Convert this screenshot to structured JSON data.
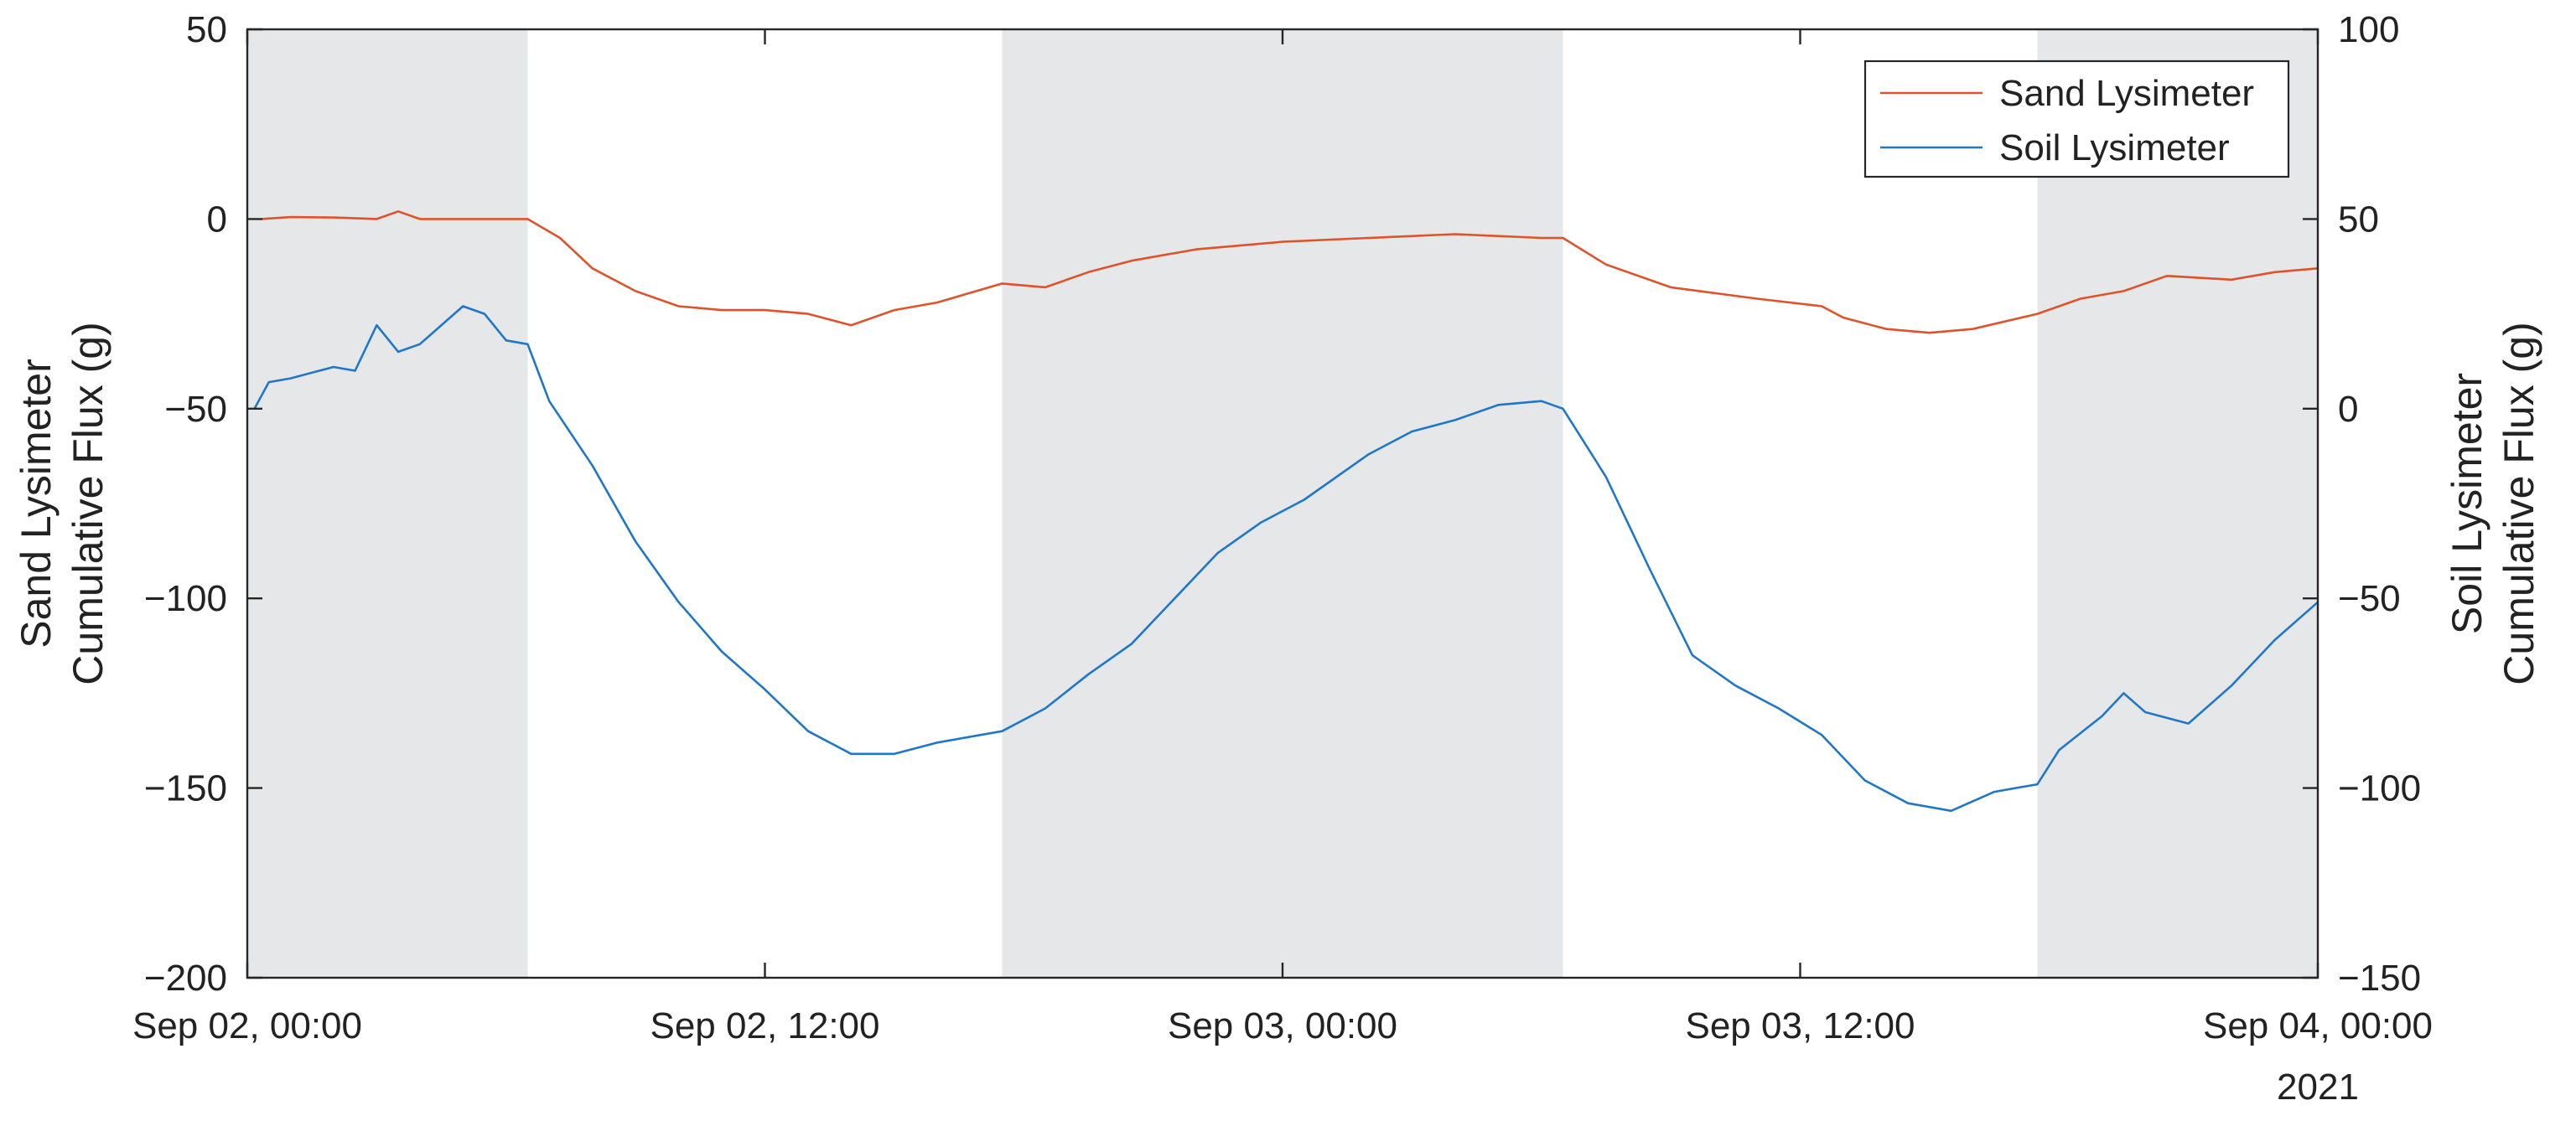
{
  "chart_data": {
    "type": "line",
    "title": "",
    "legend": {
      "placement": "top-right",
      "entries": [
        "Sand Lysimeter",
        "Soil Lysimeter"
      ]
    },
    "x_axis": {
      "type": "time",
      "range": [
        "2021-09-02T00:00",
        "2021-09-04T00:00"
      ],
      "ticks": [
        {
          "at": "2021-09-02T00:00",
          "label": "Sep 02, 00:00"
        },
        {
          "at": "2021-09-02T12:00",
          "label": "Sep 02, 12:00"
        },
        {
          "at": "2021-09-03T00:00",
          "label": "Sep 03, 00:00"
        },
        {
          "at": "2021-09-03T12:00",
          "label": "Sep 03, 12:00"
        },
        {
          "at": "2021-09-04T00:00",
          "label": "Sep 04, 00:00"
        }
      ],
      "secondary_label": "2021"
    },
    "y_left": {
      "label_lines": [
        "Sand Lysimeter",
        "Cumulative Flux (g)"
      ],
      "range": [
        -200,
        50
      ],
      "ticks": [
        50,
        0,
        -50,
        -100,
        -150,
        -200
      ]
    },
    "y_right": {
      "label_lines": [
        "Soil Lysimeter",
        "Cumulative Flux (g)"
      ],
      "range": [
        -150,
        100
      ],
      "ticks": [
        100,
        50,
        0,
        -50,
        -100,
        -150
      ]
    },
    "shaded_regions": [
      {
        "start": "2021-09-02T00:00",
        "end": "2021-09-02T06:30"
      },
      {
        "start": "2021-09-02T17:30",
        "end": "2021-09-03T06:30"
      },
      {
        "start": "2021-09-03T17:30",
        "end": "2021-09-04T00:00"
      }
    ],
    "series": [
      {
        "name": "Sand Lysimeter",
        "axis": "left",
        "color": "#e0532a",
        "points": [
          [
            "2021-09-02T00:20",
            0
          ],
          [
            "2021-09-02T01:00",
            0.5
          ],
          [
            "2021-09-02T02:00",
            0.4
          ],
          [
            "2021-09-02T03:00",
            0
          ],
          [
            "2021-09-02T03:30",
            2
          ],
          [
            "2021-09-02T04:00",
            0
          ],
          [
            "2021-09-02T05:00",
            0
          ],
          [
            "2021-09-02T06:00",
            0
          ],
          [
            "2021-09-02T06:30",
            0
          ],
          [
            "2021-09-02T07:15",
            -5
          ],
          [
            "2021-09-02T08:00",
            -13
          ],
          [
            "2021-09-02T09:00",
            -19
          ],
          [
            "2021-09-02T10:00",
            -23
          ],
          [
            "2021-09-02T11:00",
            -24
          ],
          [
            "2021-09-02T12:00",
            -24
          ],
          [
            "2021-09-02T13:00",
            -25
          ],
          [
            "2021-09-02T14:00",
            -28
          ],
          [
            "2021-09-02T15:00",
            -24
          ],
          [
            "2021-09-02T16:00",
            -22
          ],
          [
            "2021-09-02T17:30",
            -17
          ],
          [
            "2021-09-02T18:30",
            -18
          ],
          [
            "2021-09-02T19:30",
            -14
          ],
          [
            "2021-09-02T20:30",
            -11
          ],
          [
            "2021-09-02T22:00",
            -8
          ],
          [
            "2021-09-03T00:00",
            -6
          ],
          [
            "2021-09-03T02:00",
            -5
          ],
          [
            "2021-09-03T04:00",
            -4
          ],
          [
            "2021-09-03T06:00",
            -5
          ],
          [
            "2021-09-03T06:30",
            -5
          ],
          [
            "2021-09-03T07:30",
            -12
          ],
          [
            "2021-09-03T09:00",
            -18
          ],
          [
            "2021-09-03T11:00",
            -21
          ],
          [
            "2021-09-03T12:30",
            -23
          ],
          [
            "2021-09-03T13:00",
            -26
          ],
          [
            "2021-09-03T14:00",
            -29
          ],
          [
            "2021-09-03T15:00",
            -30
          ],
          [
            "2021-09-03T16:00",
            -29
          ],
          [
            "2021-09-03T17:30",
            -25
          ],
          [
            "2021-09-03T18:30",
            -21
          ],
          [
            "2021-09-03T19:30",
            -19
          ],
          [
            "2021-09-03T20:30",
            -15
          ],
          [
            "2021-09-03T22:00",
            -16
          ],
          [
            "2021-09-03T23:00",
            -14
          ],
          [
            "2021-09-04T00:00",
            -13
          ]
        ]
      },
      {
        "name": "Soil Lysimeter",
        "axis": "right",
        "color": "#1f77c9",
        "points": [
          [
            "2021-09-02T00:10",
            0
          ],
          [
            "2021-09-02T00:30",
            7
          ],
          [
            "2021-09-02T01:00",
            8
          ],
          [
            "2021-09-02T02:00",
            11
          ],
          [
            "2021-09-02T02:30",
            10
          ],
          [
            "2021-09-02T03:00",
            22
          ],
          [
            "2021-09-02T03:30",
            15
          ],
          [
            "2021-09-02T04:00",
            17
          ],
          [
            "2021-09-02T05:00",
            27
          ],
          [
            "2021-09-02T05:30",
            25
          ],
          [
            "2021-09-02T06:00",
            18
          ],
          [
            "2021-09-02T06:30",
            17
          ],
          [
            "2021-09-02T07:00",
            2
          ],
          [
            "2021-09-02T08:00",
            -15
          ],
          [
            "2021-09-02T09:00",
            -35
          ],
          [
            "2021-09-02T10:00",
            -51
          ],
          [
            "2021-09-02T11:00",
            -64
          ],
          [
            "2021-09-02T12:00",
            -74
          ],
          [
            "2021-09-02T13:00",
            -85
          ],
          [
            "2021-09-02T14:00",
            -91
          ],
          [
            "2021-09-02T15:00",
            -91
          ],
          [
            "2021-09-02T16:00",
            -88
          ],
          [
            "2021-09-02T17:30",
            -85
          ],
          [
            "2021-09-02T18:30",
            -79
          ],
          [
            "2021-09-02T19:30",
            -70
          ],
          [
            "2021-09-02T20:30",
            -62
          ],
          [
            "2021-09-02T21:30",
            -50
          ],
          [
            "2021-09-02T22:30",
            -38
          ],
          [
            "2021-09-02T23:30",
            -30
          ],
          [
            "2021-09-03T00:30",
            -24
          ],
          [
            "2021-09-03T02:00",
            -12
          ],
          [
            "2021-09-03T03:00",
            -6
          ],
          [
            "2021-09-03T04:00",
            -3
          ],
          [
            "2021-09-03T05:00",
            1
          ],
          [
            "2021-09-03T06:00",
            2
          ],
          [
            "2021-09-03T06:30",
            0
          ],
          [
            "2021-09-03T07:30",
            -18
          ],
          [
            "2021-09-03T08:30",
            -42
          ],
          [
            "2021-09-03T09:30",
            -65
          ],
          [
            "2021-09-03T10:30",
            -73
          ],
          [
            "2021-09-03T11:30",
            -79
          ],
          [
            "2021-09-03T12:30",
            -86
          ],
          [
            "2021-09-03T13:30",
            -98
          ],
          [
            "2021-09-03T14:30",
            -104
          ],
          [
            "2021-09-03T15:30",
            -106
          ],
          [
            "2021-09-03T16:30",
            -101
          ],
          [
            "2021-09-03T17:30",
            -99
          ],
          [
            "2021-09-03T18:00",
            -90
          ],
          [
            "2021-09-03T19:00",
            -81
          ],
          [
            "2021-09-03T19:30",
            -75
          ],
          [
            "2021-09-03T20:00",
            -80
          ],
          [
            "2021-09-03T21:00",
            -83
          ],
          [
            "2021-09-03T22:00",
            -73
          ],
          [
            "2021-09-03T23:00",
            -61
          ],
          [
            "2021-09-04T00:00",
            -51
          ]
        ]
      }
    ]
  }
}
